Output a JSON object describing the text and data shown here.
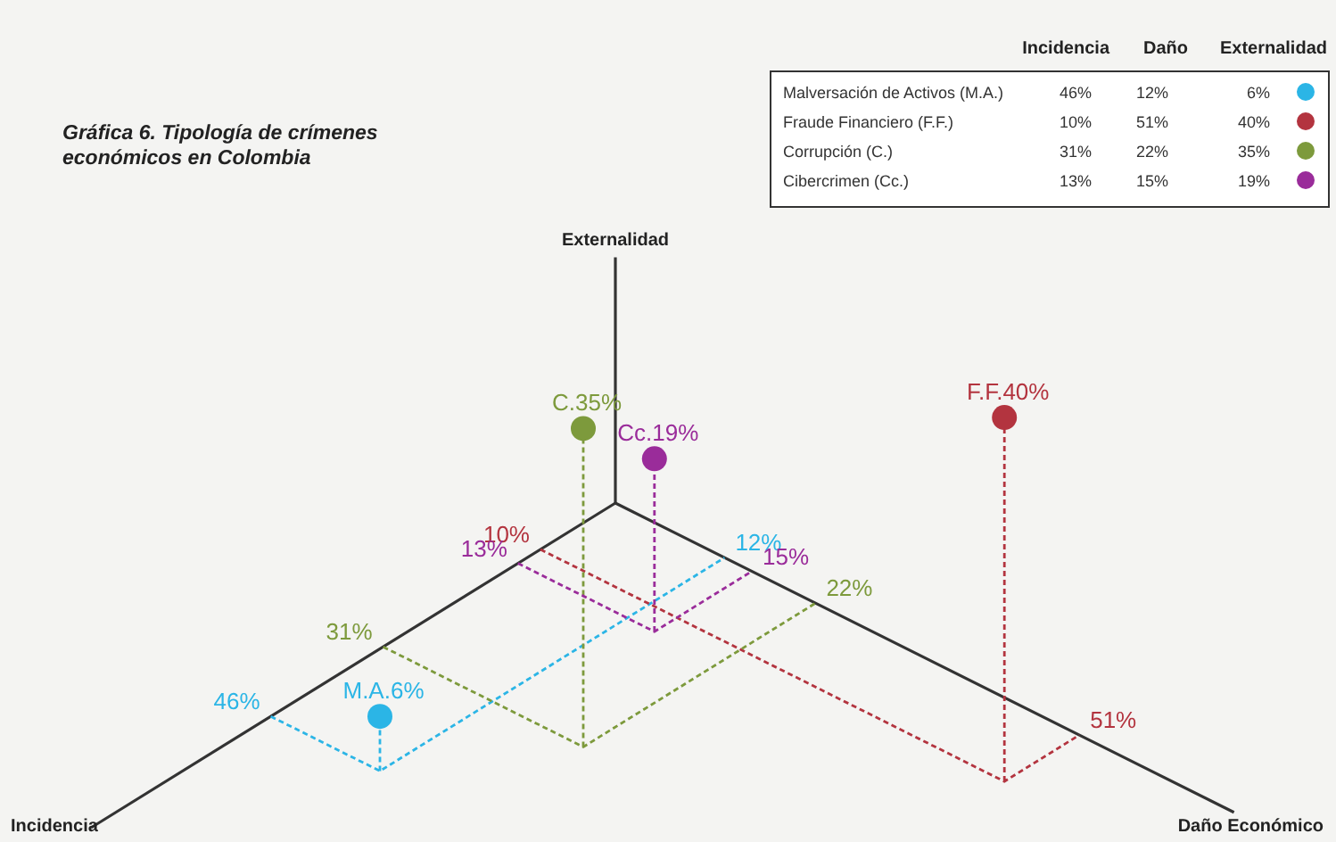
{
  "chart_data": {
    "type": "other",
    "title": "Gráfica 6. Tipología de crímenes económicos en Colombia",
    "xlabel": "Incidencia",
    "x2label": "Daño Económico",
    "ylabel": "Externalidad",
    "categories": [
      "Malversación de Activos (M.A.)",
      "Fraude Financiero (F.F.)",
      "Corrupción (C.)",
      "Cibercrimen (Cc.)"
    ],
    "colors": [
      "#2bb5e6",
      "#b3343f",
      "#7d9a3c",
      "#9a2c9a"
    ],
    "series": [
      {
        "name": "Incidencia",
        "values": [
          46,
          10,
          31,
          13
        ],
        "value_labels": [
          "46%",
          "10%",
          "31%",
          "13%"
        ]
      },
      {
        "name": "Daño",
        "values": [
          12,
          51,
          22,
          15
        ],
        "value_labels": [
          "12%",
          "51%",
          "22%",
          "15%"
        ]
      },
      {
        "name": "Externalidad",
        "values": [
          6,
          40,
          35,
          19
        ],
        "value_labels": [
          "6%",
          "40%",
          "35%",
          "19%"
        ]
      }
    ],
    "annotations": [
      "M.A.6%",
      "F.F.40%",
      "C.35%",
      "Cc.19%"
    ],
    "data_labels": true
  }
}
